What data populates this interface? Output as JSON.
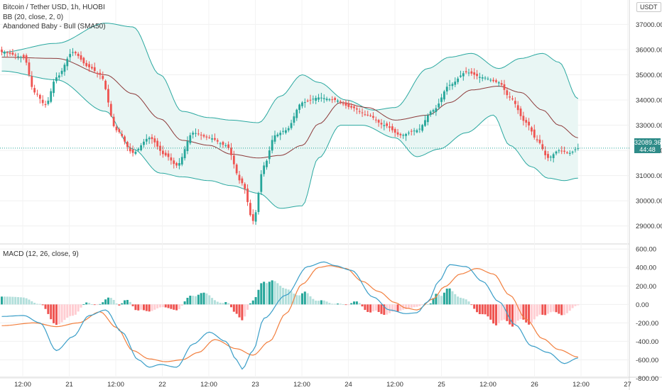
{
  "legend": {
    "symbol": "Bitcoin / Tether USD, 1h, HUOBI",
    "bb": "BB (20, close, 2, 0)",
    "pattern": "Abandoned Baby - Bull (SMA50)",
    "macd": "MACD (12, 26, close, 9)"
  },
  "currency_button": "USDT",
  "last_price": "32089.36",
  "countdown": "44:48",
  "colors": {
    "up": "#26a69a",
    "down": "#ef5350",
    "bb_band": "#2aa8a0",
    "bb_basis": "#8d3b3b",
    "bb_fill": "#e9f6f4",
    "macd_line": "#3a9ec8",
    "signal_line": "#f27f3e",
    "hist_up_strong": "#26a69a",
    "hist_up_weak": "#b2dfdb",
    "hist_down_strong": "#ef5350",
    "hist_down_weak": "#ffcdd2"
  },
  "chart_data": [
    {
      "type": "candlestick",
      "title": "Bitcoin / Tether USD, 1h, HUOBI",
      "ylim": [
        28400,
        37800
      ],
      "y_ticks": [
        "37000.00",
        "36000.00",
        "35000.00",
        "34000.00",
        "33000.00",
        "32000.00",
        "31000.00",
        "30000.00",
        "29000.00"
      ],
      "x_ticks": [
        "12:00",
        "21",
        "12:00",
        "22",
        "12:00",
        "23",
        "12:00",
        "24",
        "12:00",
        "25",
        "12:00",
        "26",
        "12:00",
        "27"
      ],
      "close_anchors": [
        [
          0,
          35900
        ],
        [
          8,
          35700
        ],
        [
          12,
          34300
        ],
        [
          16,
          33800
        ],
        [
          20,
          34900
        ],
        [
          26,
          35900
        ],
        [
          32,
          35300
        ],
        [
          36,
          35000
        ],
        [
          42,
          32800
        ],
        [
          48,
          31900
        ],
        [
          54,
          32500
        ],
        [
          60,
          31800
        ],
        [
          64,
          31400
        ],
        [
          70,
          32700
        ],
        [
          76,
          32500
        ],
        [
          82,
          32200
        ],
        [
          88,
          30700
        ],
        [
          92,
          29200
        ],
        [
          96,
          31400
        ],
        [
          100,
          32600
        ],
        [
          104,
          32800
        ],
        [
          110,
          33900
        ],
        [
          116,
          34100
        ],
        [
          122,
          34000
        ],
        [
          128,
          33700
        ],
        [
          134,
          33400
        ],
        [
          140,
          33000
        ],
        [
          146,
          32600
        ],
        [
          152,
          32800
        ],
        [
          158,
          33600
        ],
        [
          164,
          34600
        ],
        [
          170,
          35100
        ],
        [
          176,
          34900
        ],
        [
          182,
          34700
        ],
        [
          186,
          34100
        ],
        [
          192,
          33100
        ],
        [
          196,
          32400
        ],
        [
          200,
          31700
        ],
        [
          204,
          32000
        ],
        [
          208,
          31900
        ],
        [
          211,
          32089
        ]
      ],
      "bollinger": {
        "upper": [
          [
            0,
            35900
          ],
          [
            20,
            36250
          ],
          [
            38,
            37050
          ],
          [
            48,
            36900
          ],
          [
            58,
            35000
          ],
          [
            66,
            33550
          ],
          [
            76,
            33300
          ],
          [
            84,
            33200
          ],
          [
            94,
            33100
          ],
          [
            102,
            34150
          ],
          [
            110,
            35000
          ],
          [
            116,
            34700
          ],
          [
            126,
            34000
          ],
          [
            136,
            33600
          ],
          [
            144,
            33700
          ],
          [
            156,
            35250
          ],
          [
            164,
            35700
          ],
          [
            172,
            35850
          ],
          [
            182,
            35250
          ],
          [
            190,
            35650
          ],
          [
            198,
            35850
          ],
          [
            204,
            35500
          ],
          [
            211,
            34050
          ]
        ],
        "basis": [
          [
            0,
            35700
          ],
          [
            20,
            35650
          ],
          [
            38,
            35000
          ],
          [
            48,
            34250
          ],
          [
            58,
            33250
          ],
          [
            66,
            32400
          ],
          [
            76,
            32200
          ],
          [
            84,
            31850
          ],
          [
            94,
            31700
          ],
          [
            102,
            31800
          ],
          [
            110,
            32200
          ],
          [
            116,
            33050
          ],
          [
            124,
            33900
          ],
          [
            134,
            33700
          ],
          [
            144,
            33200
          ],
          [
            156,
            33400
          ],
          [
            164,
            33900
          ],
          [
            172,
            34400
          ],
          [
            182,
            34550
          ],
          [
            190,
            34300
          ],
          [
            198,
            33600
          ],
          [
            204,
            33000
          ],
          [
            211,
            32500
          ]
        ],
        "lower": [
          [
            0,
            35150
          ],
          [
            20,
            34800
          ],
          [
            38,
            33550
          ],
          [
            48,
            32050
          ],
          [
            58,
            31100
          ],
          [
            66,
            30950
          ],
          [
            76,
            30800
          ],
          [
            84,
            30600
          ],
          [
            94,
            30300
          ],
          [
            102,
            29700
          ],
          [
            110,
            29800
          ],
          [
            116,
            31700
          ],
          [
            124,
            33000
          ],
          [
            132,
            33000
          ],
          [
            144,
            32500
          ],
          [
            152,
            31750
          ],
          [
            160,
            32050
          ],
          [
            170,
            32700
          ],
          [
            180,
            33400
          ],
          [
            186,
            32200
          ],
          [
            194,
            31350
          ],
          [
            200,
            30900
          ],
          [
            206,
            30800
          ],
          [
            211,
            30900
          ]
        ]
      }
    },
    {
      "type": "macd",
      "title": "MACD (12, 26, close, 9)",
      "ylim": [
        -850,
        640
      ],
      "y_ticks": [
        "600.00",
        "400.00",
        "200.00",
        "0.00",
        "-200.00",
        "-400.00",
        "-600.00",
        "-800.00"
      ],
      "macd_anchors": [
        [
          0,
          -130
        ],
        [
          8,
          -120
        ],
        [
          14,
          -200
        ],
        [
          20,
          -500
        ],
        [
          26,
          -350
        ],
        [
          32,
          -120
        ],
        [
          38,
          -60
        ],
        [
          44,
          -300
        ],
        [
          50,
          -600
        ],
        [
          54,
          -680
        ],
        [
          58,
          -650
        ],
        [
          64,
          -680
        ],
        [
          70,
          -430
        ],
        [
          76,
          -300
        ],
        [
          82,
          -400
        ],
        [
          86,
          -600
        ],
        [
          88,
          -700
        ],
        [
          92,
          -500
        ],
        [
          96,
          -150
        ],
        [
          104,
          100
        ],
        [
          112,
          410
        ],
        [
          118,
          460
        ],
        [
          122,
          420
        ],
        [
          128,
          370
        ],
        [
          136,
          80
        ],
        [
          142,
          -60
        ],
        [
          148,
          -100
        ],
        [
          152,
          -90
        ],
        [
          156,
          30
        ],
        [
          160,
          250
        ],
        [
          164,
          430
        ],
        [
          170,
          410
        ],
        [
          176,
          250
        ],
        [
          182,
          30
        ],
        [
          188,
          -220
        ],
        [
          194,
          -450
        ],
        [
          200,
          -520
        ],
        [
          206,
          -640
        ],
        [
          211,
          -580
        ]
      ],
      "signal_anchors": [
        [
          0,
          -230
        ],
        [
          12,
          -200
        ],
        [
          20,
          -240
        ],
        [
          28,
          -200
        ],
        [
          36,
          -80
        ],
        [
          42,
          -250
        ],
        [
          48,
          -500
        ],
        [
          54,
          -590
        ],
        [
          60,
          -620
        ],
        [
          66,
          -600
        ],
        [
          72,
          -520
        ],
        [
          78,
          -380
        ],
        [
          86,
          -480
        ],
        [
          92,
          -550
        ],
        [
          98,
          -400
        ],
        [
          104,
          -100
        ],
        [
          110,
          220
        ],
        [
          116,
          400
        ],
        [
          120,
          420
        ],
        [
          126,
          390
        ],
        [
          132,
          250
        ],
        [
          138,
          140
        ],
        [
          144,
          20
        ],
        [
          148,
          -40
        ],
        [
          152,
          -60
        ],
        [
          158,
          60
        ],
        [
          162,
          190
        ],
        [
          168,
          330
        ],
        [
          174,
          390
        ],
        [
          180,
          330
        ],
        [
          186,
          100
        ],
        [
          192,
          -160
        ],
        [
          198,
          -370
        ],
        [
          204,
          -490
        ],
        [
          211,
          -570
        ]
      ]
    }
  ]
}
